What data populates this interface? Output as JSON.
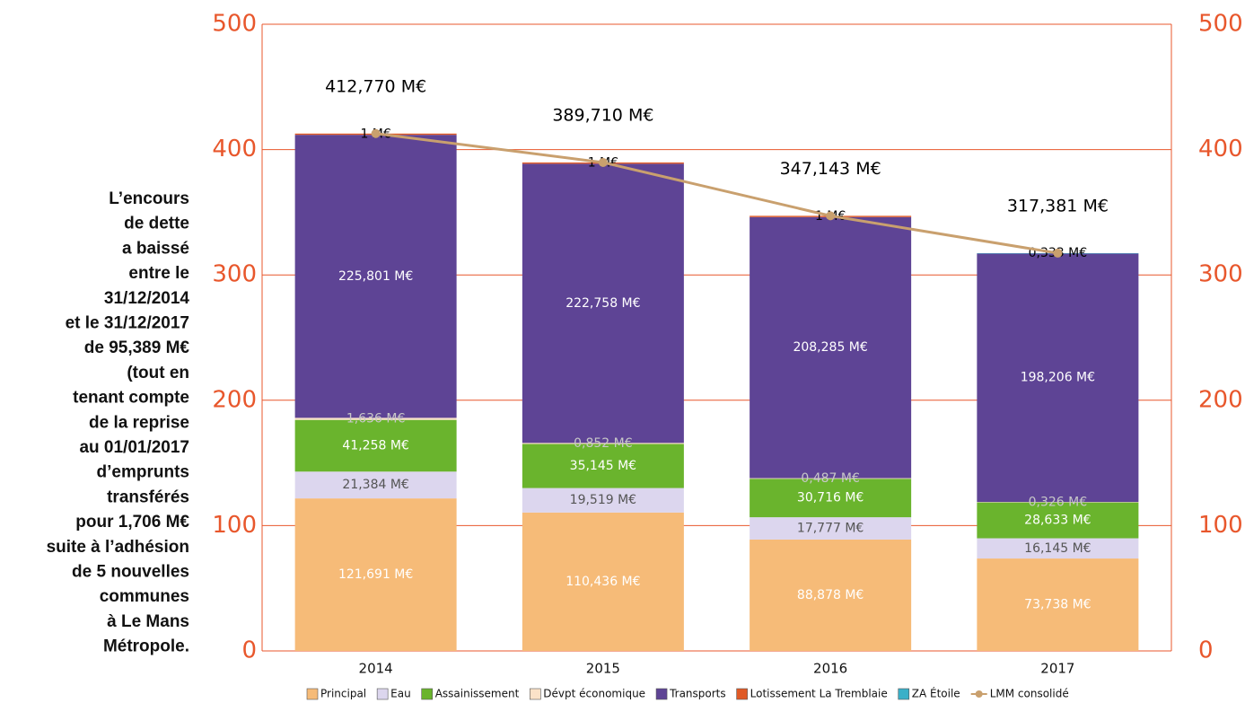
{
  "chart_data": {
    "type": "bar",
    "stacked": true,
    "annotation_lines": [
      "L’encours",
      "de dette",
      "a baissé",
      "entre le",
      "31/12/2014",
      "et le 31/12/2017",
      "de 95,389 M€",
      "(tout en",
      "tenant compte",
      "de la reprise",
      "au 01/01/2017",
      "d’emprunts",
      "transférés",
      "pour 1,706 M€",
      "suite à l’adhésion",
      "de 5 nouvelles",
      "communes",
      "à Le Mans",
      "Métropole."
    ],
    "categories": [
      "2014",
      "2015",
      "2016",
      "2017"
    ],
    "ylim": [
      0,
      500
    ],
    "yticks": [
      0,
      100,
      200,
      300,
      400,
      500
    ],
    "y2lim": [
      0,
      500
    ],
    "y2ticks": [
      0,
      100,
      200,
      300,
      400,
      500
    ],
    "grid": true,
    "series": [
      {
        "name": "Principal",
        "color": "#f6bb78",
        "label_color": "#ffffff",
        "values": [
          121.691,
          110.436,
          88.878,
          73.738
        ],
        "value_labels": [
          "121,691 M€",
          "110,436 M€",
          "88,878 M€",
          "73,738 M€"
        ]
      },
      {
        "name": "Eau",
        "color": "#dcd6ee",
        "label_color": "#555555",
        "values": [
          21.384,
          19.519,
          17.777,
          16.145
        ],
        "value_labels": [
          "21,384 M€",
          "19,519 M€",
          "17,777 M€",
          "16,145 M€"
        ]
      },
      {
        "name": "Assainissement",
        "color": "#6ab42d",
        "label_color": "#ffffff",
        "values": [
          41.258,
          35.145,
          30.716,
          28.633
        ],
        "value_labels": [
          "41,258 M€",
          "35,145 M€",
          "30,716 M€",
          "28,633 M€"
        ]
      },
      {
        "name": "Dévpt économique",
        "color": "#fbe2c8",
        "label_color": "#c8c8c8",
        "values": [
          1.636,
          0.852,
          0.487,
          0.326
        ],
        "value_labels": [
          "1,636 M€",
          "0,852 M€",
          "0,487 M€",
          "0,326 M€"
        ]
      },
      {
        "name": "Transports",
        "color": "#5e4495",
        "label_color": "#ffffff",
        "values": [
          225.801,
          222.758,
          208.285,
          198.206
        ],
        "value_labels": [
          "225,801 M€",
          "222,758 M€",
          "208,285 M€",
          "198,206 M€"
        ]
      },
      {
        "name": "Lotissement La Tremblaie",
        "color": "#e05a26",
        "label_color": "#000000",
        "values": [
          1,
          1,
          1,
          null
        ],
        "value_labels": [
          "1 M€",
          "1 M€",
          "1 M€",
          null
        ]
      },
      {
        "name": "ZA Étoile",
        "color": "#3ab0c8",
        "label_color": "#000000",
        "values": [
          null,
          null,
          null,
          0.333
        ],
        "value_labels": [
          null,
          null,
          null,
          "0,333 M€"
        ]
      },
      {
        "name": "LMM consolidé",
        "type": "line",
        "axis": "y2",
        "color": "#c9a06e",
        "label_color": "#000000",
        "values": [
          412.77,
          389.71,
          347.143,
          317.381
        ],
        "value_labels": [
          "412,770 M€",
          "389,710 M€",
          "347,143 M€",
          "317,381 M€"
        ]
      }
    ]
  }
}
